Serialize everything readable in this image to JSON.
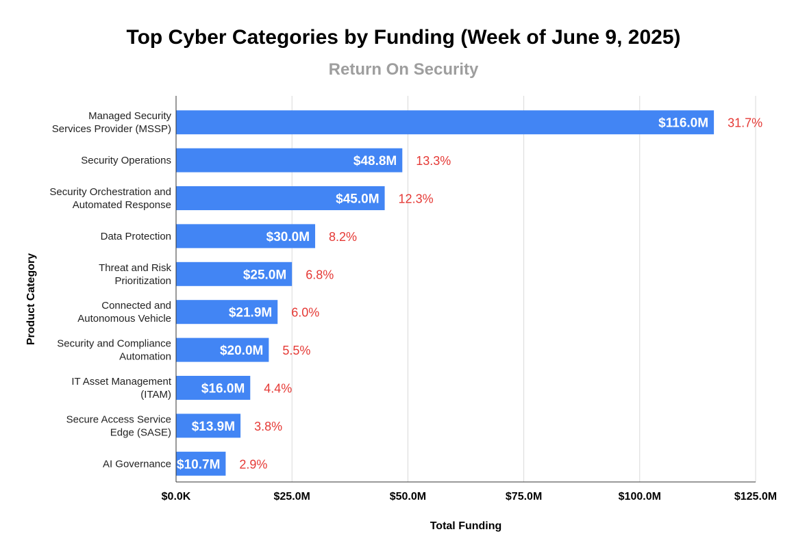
{
  "chart_data": {
    "type": "bar",
    "orientation": "horizontal",
    "title": "Top Cyber Categories by Funding (Week of June 9, 2025)",
    "subtitle": "Return On Security",
    "xlabel": "Total Funding",
    "ylabel": "Product Category",
    "xlim": [
      0,
      125
    ],
    "x_ticks": [
      0,
      25,
      50,
      75,
      100,
      125
    ],
    "x_tick_labels": [
      "$0.0K",
      "$25.0M",
      "$50.0M",
      "$75.0M",
      "$100.0M",
      "$125.0M"
    ],
    "grid": true,
    "legend": "none",
    "categories": [
      [
        "Managed Security",
        "Services Provider (MSSP)"
      ],
      [
        "Security Operations"
      ],
      [
        "Security Orchestration and",
        "Automated Response"
      ],
      [
        "Data Protection"
      ],
      [
        "Threat and Risk",
        "Prioritization"
      ],
      [
        "Connected and",
        "Autonomous Vehicle"
      ],
      [
        "Security and Compliance",
        "Automation"
      ],
      [
        "IT Asset Management",
        "(ITAM)"
      ],
      [
        "Secure Access Service",
        "Edge (SASE)"
      ],
      [
        "AI Governance"
      ]
    ],
    "values": [
      116.0,
      48.8,
      45.0,
      30.0,
      25.0,
      21.9,
      20.0,
      16.0,
      13.9,
      10.7
    ],
    "value_labels": [
      "$116.0M",
      "$48.8M",
      "$45.0M",
      "$30.0M",
      "$25.0M",
      "$21.9M",
      "$20.0M",
      "$16.0M",
      "$13.9M",
      "$10.7M"
    ],
    "percent_labels": [
      "31.7%",
      "13.3%",
      "12.3%",
      "8.2%",
      "6.8%",
      "6.0%",
      "5.5%",
      "4.4%",
      "3.8%",
      "2.9%"
    ],
    "colors": {
      "bar": "#4285f4",
      "grid": "#d9d9d9",
      "axis": "#333333",
      "value_text": "#ffffff",
      "percent_text": "#e53935",
      "subtitle": "#9e9e9e"
    }
  }
}
